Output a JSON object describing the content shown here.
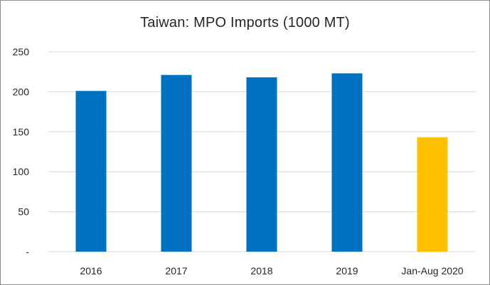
{
  "chart_data": {
    "type": "bar",
    "title": "Taiwan: MPO Imports (1000 MT)",
    "categories": [
      "2016",
      "2017",
      "2018",
      "2019",
      "Jan-Aug 2020"
    ],
    "values": [
      201,
      221,
      218,
      223,
      143
    ],
    "bar_colors": [
      "#0070c0",
      "#0070c0",
      "#0070c0",
      "#0070c0",
      "#ffc000"
    ],
    "xlabel": "",
    "ylabel": "",
    "ylim": [
      0,
      250
    ],
    "yticks": [
      0,
      50,
      100,
      150,
      200,
      250
    ],
    "ytick_labels": [
      "-",
      "50",
      "100",
      "150",
      "200",
      "250"
    ],
    "grid": true,
    "gridline_color": "#d9d9d9",
    "legend": "none"
  }
}
